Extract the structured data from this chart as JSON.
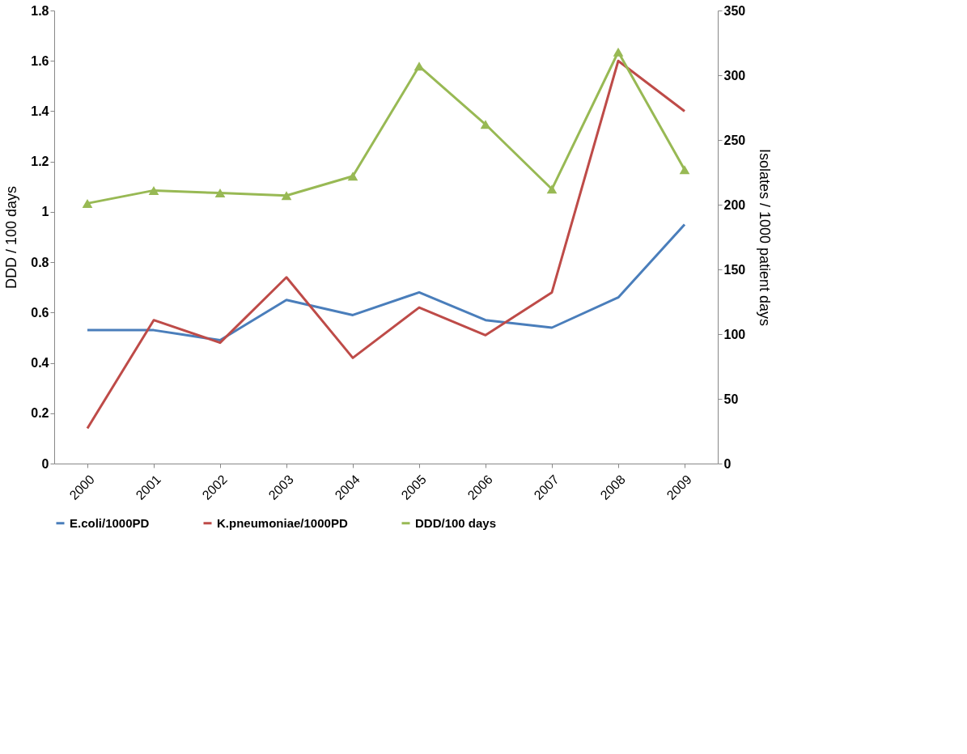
{
  "chart_data": {
    "type": "line",
    "ylabel": "DDD / 100 days",
    "y2label": "Isolates / 1000 patient days",
    "categories": [
      "2000",
      "2001",
      "2002",
      "2003",
      "2004",
      "2005",
      "2006",
      "2007",
      "2008",
      "2009"
    ],
    "series": [
      {
        "name": "E.coli/1000PD",
        "color": "#4a7ebb",
        "marker": "none",
        "values": [
          0.53,
          0.53,
          0.49,
          0.65,
          0.59,
          0.68,
          0.57,
          0.54,
          0.66,
          0.95
        ]
      },
      {
        "name": "K.pneumoniae/1000PD",
        "color": "#be4b48",
        "marker": "none",
        "values": [
          0.14,
          0.57,
          0.48,
          0.74,
          0.42,
          0.62,
          0.51,
          0.68,
          1.6,
          1.4
        ]
      },
      {
        "name": "DDD/100 days",
        "color": "#98b954",
        "marker": "triangle",
        "axis": "y2",
        "values": [
          201,
          211,
          209,
          207,
          222,
          307,
          262,
          212,
          318,
          227
        ]
      }
    ],
    "ylim": [
      0,
      1.8
    ],
    "yticks": [
      0,
      0.2,
      0.4,
      0.6,
      0.8,
      1,
      1.2,
      1.4,
      1.6,
      1.8
    ],
    "y2lim": [
      0,
      350
    ],
    "y2ticks": [
      0,
      50,
      100,
      150,
      200,
      250,
      300,
      350
    ],
    "grid": false,
    "legend": "bottom",
    "line_style": "solid"
  }
}
